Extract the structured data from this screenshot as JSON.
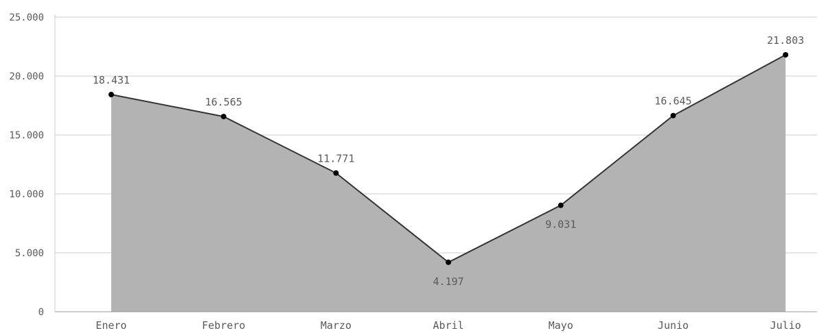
{
  "chart_data": {
    "type": "area",
    "categories": [
      "Enero",
      "Febrero",
      "Marzo",
      "Abril",
      "Mayo",
      "Junio",
      "Julio"
    ],
    "series": [
      {
        "values": [
          18431,
          16565,
          11771,
          4197,
          9031,
          16645,
          21803
        ],
        "labels": [
          "18.431",
          "16.565",
          "11.771",
          "4.197",
          "9.031",
          "16.645",
          "21.803"
        ],
        "label_position": [
          "above",
          "above",
          "above",
          "below",
          "below",
          "above",
          "above"
        ]
      }
    ],
    "yticks": [
      0,
      5000,
      10000,
      15000,
      20000,
      25000
    ],
    "ytick_labels": [
      "0",
      "5.000",
      "10.000",
      "15.000",
      "20.000",
      "25.000"
    ],
    "ylim": [
      0,
      25000
    ],
    "title": "",
    "xlabel": "",
    "ylabel": "",
    "grid": true,
    "legend": "none",
    "colors": {
      "area_fill": "#b3b3b3",
      "line": "#333333",
      "marker": "#000000",
      "grid": "#cccccc",
      "text": "#595959"
    }
  }
}
